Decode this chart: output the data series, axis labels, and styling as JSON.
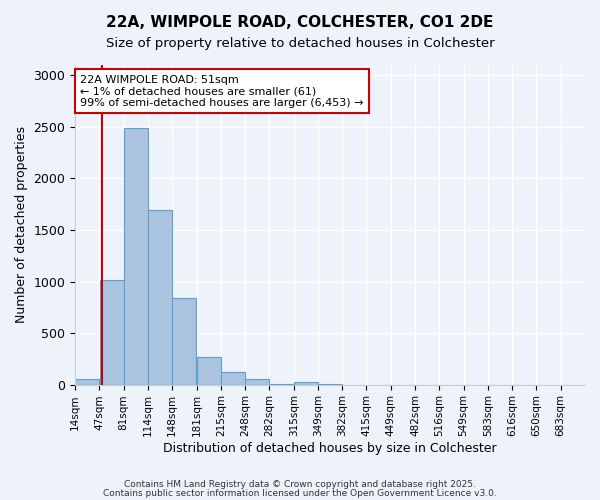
{
  "title": "22A, WIMPOLE ROAD, COLCHESTER, CO1 2DE",
  "subtitle": "Size of property relative to detached houses in Colchester",
  "xlabel": "Distribution of detached houses by size in Colchester",
  "ylabel": "Number of detached properties",
  "bar_labels": [
    "14sqm",
    "47sqm",
    "81sqm",
    "114sqm",
    "148sqm",
    "181sqm",
    "215sqm",
    "248sqm",
    "282sqm",
    "315sqm",
    "349sqm",
    "382sqm",
    "415sqm",
    "449sqm",
    "482sqm",
    "516sqm",
    "549sqm",
    "583sqm",
    "616sqm",
    "650sqm",
    "683sqm"
  ],
  "bar_values": [
    50,
    1010,
    2490,
    1690,
    840,
    270,
    120,
    50,
    10,
    30,
    5,
    0,
    0,
    0,
    0,
    0,
    0,
    0,
    0,
    0,
    0
  ],
  "bar_color": "#aac4e0",
  "bar_edge_color": "#5a9fd4",
  "property_line_x": 51,
  "property_line_color": "#cc0000",
  "annotation_title": "22A WIMPOLE ROAD: 51sqm",
  "annotation_line1": "← 1% of detached houses are smaller (61)",
  "annotation_line2": "99% of semi-detached houses are larger (6,453) →",
  "annotation_box_color": "#ffffff",
  "annotation_box_edge": "#cc0000",
  "ylim": [
    0,
    3100
  ],
  "xlim_min": 14,
  "bin_size": 33,
  "num_bins": 21,
  "yticks": [
    0,
    500,
    1000,
    1500,
    2000,
    2500,
    3000
  ],
  "footer1": "Contains HM Land Registry data © Crown copyright and database right 2025.",
  "footer2": "Contains public sector information licensed under the Open Government Licence v3.0.",
  "background_color": "#eef2fa",
  "plot_bg_color": "#eef2fa"
}
